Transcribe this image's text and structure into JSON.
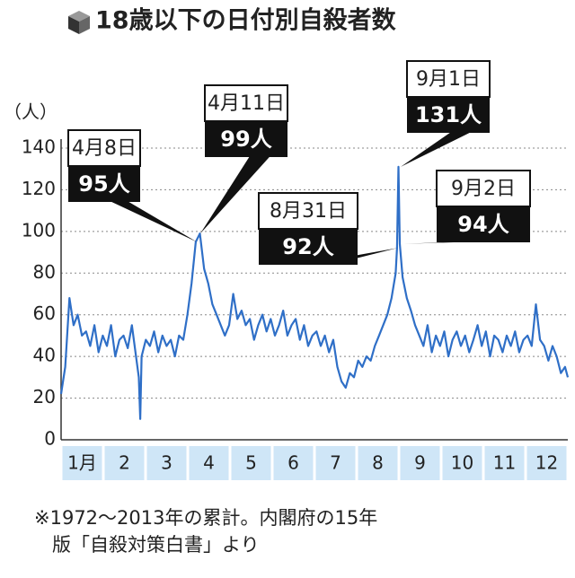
{
  "chart_data": {
    "type": "line",
    "title": "18歳以下の日付別自殺者数",
    "y_label": "（人）",
    "categories": [
      "1月",
      "2",
      "3",
      "4",
      "5",
      "6",
      "7",
      "8",
      "9",
      "10",
      "11",
      "12"
    ],
    "x": [
      1,
      4,
      7,
      10,
      13,
      16,
      19,
      22,
      25,
      28,
      31,
      34,
      37,
      40,
      43,
      46,
      49,
      52,
      55,
      57,
      58,
      59,
      62,
      65,
      68,
      71,
      74,
      77,
      80,
      83,
      86,
      89,
      92,
      95,
      98,
      101,
      104,
      107,
      110,
      113,
      116,
      119,
      122,
      125,
      128,
      131,
      134,
      137,
      140,
      143,
      146,
      149,
      152,
      155,
      158,
      161,
      164,
      167,
      170,
      173,
      176,
      179,
      182,
      185,
      188,
      191,
      194,
      197,
      200,
      203,
      206,
      209,
      212,
      215,
      218,
      221,
      224,
      227,
      230,
      233,
      236,
      239,
      242,
      243,
      244,
      245,
      247,
      250,
      253,
      256,
      259,
      262,
      265,
      268,
      271,
      274,
      277,
      280,
      283,
      286,
      289,
      292,
      295,
      298,
      301,
      304,
      307,
      310,
      313,
      316,
      319,
      322,
      325,
      328,
      331,
      334,
      337,
      340,
      343,
      346,
      349,
      352,
      355,
      358,
      361,
      364,
      366
    ],
    "series": [
      {
        "name": "18歳以下",
        "color": "#2f6fc7",
        "values": [
          22,
          35,
          68,
          55,
          60,
          50,
          52,
          45,
          55,
          42,
          50,
          45,
          55,
          40,
          48,
          50,
          44,
          55,
          40,
          30,
          10,
          40,
          48,
          45,
          52,
          42,
          50,
          45,
          48,
          40,
          50,
          48,
          60,
          75,
          95,
          99,
          82,
          75,
          65,
          60,
          55,
          50,
          55,
          70,
          58,
          62,
          55,
          58,
          48,
          55,
          60,
          52,
          58,
          50,
          55,
          62,
          50,
          55,
          58,
          48,
          55,
          45,
          50,
          52,
          45,
          50,
          42,
          48,
          35,
          28,
          25,
          32,
          30,
          38,
          35,
          40,
          38,
          45,
          50,
          55,
          60,
          68,
          80,
          92,
          131,
          94,
          78,
          68,
          62,
          55,
          50,
          45,
          55,
          42,
          50,
          45,
          52,
          40,
          48,
          52,
          45,
          50,
          42,
          48,
          55,
          45,
          52,
          40,
          50,
          48,
          42,
          50,
          45,
          52,
          42,
          48,
          50,
          45,
          65,
          48,
          45,
          38,
          45,
          40,
          32,
          35,
          30
        ]
      }
    ],
    "xlim": [
      1,
      366
    ],
    "ylim": [
      0,
      140
    ],
    "yticks": [
      0,
      20,
      40,
      60,
      80,
      100,
      120,
      140
    ],
    "grid": true,
    "annotations": [
      {
        "text": "4月8日",
        "label": "95人",
        "value": 95
      },
      {
        "text": "4月11日",
        "label": "99人",
        "value": 99
      },
      {
        "text": "8月31日",
        "label": "92人",
        "value": 92
      },
      {
        "text": "9月1日",
        "label": "131人",
        "value": 131
      },
      {
        "text": "9月2日",
        "label": "94人",
        "value": 94
      }
    ],
    "footnote": [
      "※1972～2013年の累計。内閣府の15年",
      "版「自殺対策白書」より"
    ]
  }
}
